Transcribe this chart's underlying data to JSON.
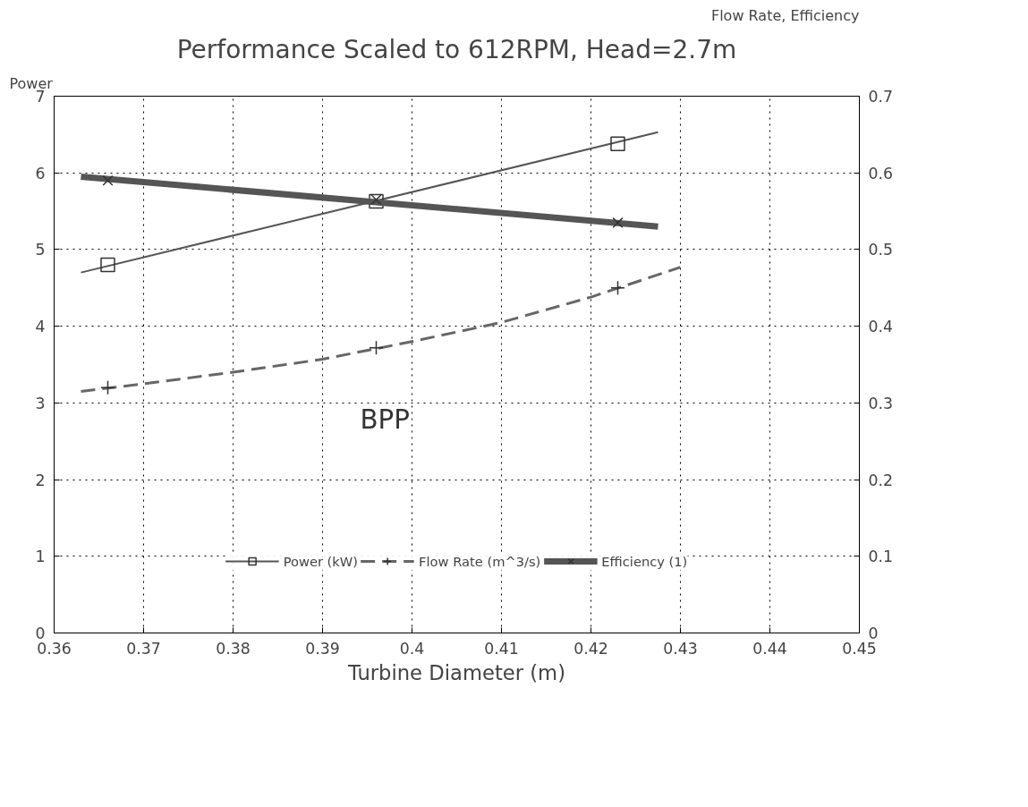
{
  "chart_data": {
    "type": "line",
    "title": "Performance Scaled to 612RPM, Head=2.7m",
    "xlabel": "Turbine Diameter (m)",
    "ylabel": "Power",
    "y2label": "Flow Rate, Efficiency",
    "xlim": [
      0.36,
      0.45
    ],
    "xticks": [
      0.36,
      0.37,
      0.38,
      0.39,
      0.4,
      0.41,
      0.42,
      0.43,
      0.44,
      0.45
    ],
    "ylim": [
      0,
      7
    ],
    "yticks": [
      0,
      1,
      2,
      3,
      4,
      5,
      6,
      7
    ],
    "y2lim": [
      0,
      0.7
    ],
    "y2ticks": [
      0,
      0.1,
      0.2,
      0.3,
      0.4,
      0.5,
      0.6,
      0.7
    ],
    "grid": true,
    "legend": "bottom",
    "line_style": "solid",
    "annotations": [
      "BPP"
    ],
    "series": [
      {
        "name": "Power (kW)",
        "color": "#555555",
        "x": [
          0.363,
          0.4275
        ],
        "values": [
          4.7,
          6.53
        ]
      },
      {
        "type": "scatter",
        "color": "#333333",
        "marker": "square",
        "x": [
          0.366,
          0.396,
          0.423
        ],
        "values": [
          4.8,
          5.63,
          6.38
        ]
      },
      {
        "name": "Flow Rate (m^3/s)",
        "axis": "y2",
        "line_style": "dashed",
        "color": "#666666",
        "x": [
          0.363,
          0.37,
          0.38,
          0.39,
          0.4,
          0.41,
          0.42,
          0.43
        ],
        "values": [
          0.315,
          0.325,
          0.34,
          0.357,
          0.38,
          0.405,
          0.438,
          0.477
        ]
      },
      {
        "type": "scatter",
        "axis": "y2",
        "color": "#333333",
        "marker": "cross",
        "x": [
          0.366,
          0.396,
          0.423
        ],
        "values": [
          0.32,
          0.372,
          0.45
        ]
      },
      {
        "name": "Efficiency (1)",
        "axis": "y2",
        "color": "#555555",
        "x": [
          0.363,
          0.4275
        ],
        "values": [
          0.595,
          0.53
        ]
      },
      {
        "type": "scatter",
        "axis": "y2",
        "color": "#333333",
        "marker": "x",
        "x": [
          0.366,
          0.396,
          0.423
        ],
        "values": [
          0.59,
          0.565,
          0.535
        ]
      }
    ]
  }
}
